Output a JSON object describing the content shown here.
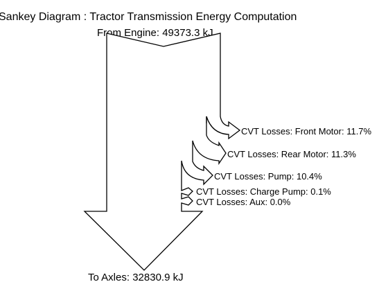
{
  "title": "Sankey Diagram : Tractor Transmission Energy Computation",
  "input_label": "From Engine: 49373.3 kJ",
  "output_label": "To Axles: 32830.9 kJ",
  "losses": [
    {
      "label": "CVT Losses: Front Motor: 11.7%",
      "percent": 11.7
    },
    {
      "label": "CVT Losses: Rear Motor: 11.3%",
      "percent": 11.3
    },
    {
      "label": "CVT Losses: Pump: 10.4%",
      "percent": 10.4
    },
    {
      "label": "CVT Losses: Charge Pump: 0.1%",
      "percent": 0.1
    },
    {
      "label": "CVT Losses: Aux: 0.0%",
      "percent": 0.0
    }
  ],
  "colors": {
    "stroke": "#000000",
    "fill": "#ffffff"
  }
}
